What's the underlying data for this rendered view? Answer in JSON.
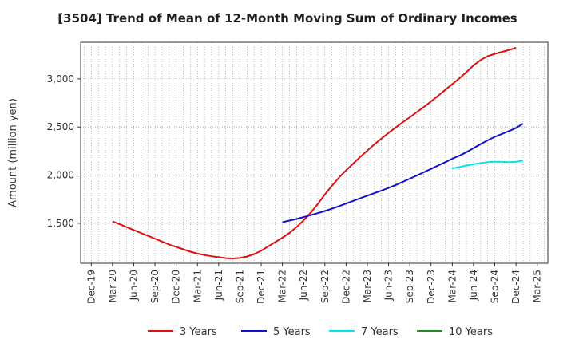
{
  "chart_data": {
    "type": "line",
    "title": "[3504]  Trend of Mean of 12-Month Moving Sum of Ordinary Incomes",
    "ylabel": "Amount (million yen)",
    "xlabel": "",
    "x_ticks": [
      "Dec-19",
      "Mar-20",
      "Jun-20",
      "Sep-20",
      "Dec-20",
      "Mar-21",
      "Jun-21",
      "Sep-21",
      "Dec-21",
      "Mar-22",
      "Jun-22",
      "Sep-22",
      "Dec-22",
      "Mar-23",
      "Jun-23",
      "Sep-23",
      "Dec-23",
      "Mar-24",
      "Jun-24",
      "Sep-24",
      "Dec-24",
      "Mar-25"
    ],
    "y_ticks": [
      1500,
      2000,
      2500,
      3000
    ],
    "y_tick_labels": [
      "1,500",
      "2,000",
      "2,500",
      "3,000"
    ],
    "ylim": [
      1085,
      3380
    ],
    "grid": true,
    "legend_position": "bottom",
    "series": [
      {
        "name": "3 Years",
        "color": "#dd1111",
        "points": [
          [
            "Mar-20",
            1520
          ],
          [
            "Apr-20",
            1490
          ],
          [
            "May-20",
            1460
          ],
          [
            "Jun-20",
            1430
          ],
          [
            "Jul-20",
            1400
          ],
          [
            "Aug-20",
            1370
          ],
          [
            "Sep-20",
            1340
          ],
          [
            "Oct-20",
            1310
          ],
          [
            "Nov-20",
            1280
          ],
          [
            "Dec-20",
            1255
          ],
          [
            "Jan-21",
            1230
          ],
          [
            "Feb-21",
            1205
          ],
          [
            "Mar-21",
            1185
          ],
          [
            "Apr-21",
            1170
          ],
          [
            "May-21",
            1158
          ],
          [
            "Jun-21",
            1148
          ],
          [
            "Jul-21",
            1138
          ],
          [
            "Aug-21",
            1135
          ],
          [
            "Sep-21",
            1140
          ],
          [
            "Oct-21",
            1155
          ],
          [
            "Nov-21",
            1180
          ],
          [
            "Dec-21",
            1215
          ],
          [
            "Jan-22",
            1260
          ],
          [
            "Feb-22",
            1305
          ],
          [
            "Mar-22",
            1350
          ],
          [
            "Apr-22",
            1400
          ],
          [
            "May-22",
            1460
          ],
          [
            "Jun-22",
            1530
          ],
          [
            "Jul-22",
            1610
          ],
          [
            "Aug-22",
            1700
          ],
          [
            "Sep-22",
            1800
          ],
          [
            "Oct-22",
            1890
          ],
          [
            "Nov-22",
            1975
          ],
          [
            "Dec-22",
            2050
          ],
          [
            "Jan-23",
            2120
          ],
          [
            "Feb-23",
            2190
          ],
          [
            "Mar-23",
            2255
          ],
          [
            "Apr-23",
            2320
          ],
          [
            "May-23",
            2380
          ],
          [
            "Jun-23",
            2440
          ],
          [
            "Jul-23",
            2495
          ],
          [
            "Aug-23",
            2550
          ],
          [
            "Sep-23",
            2600
          ],
          [
            "Oct-23",
            2655
          ],
          [
            "Nov-23",
            2710
          ],
          [
            "Dec-23",
            2765
          ],
          [
            "Jan-24",
            2825
          ],
          [
            "Feb-24",
            2885
          ],
          [
            "Mar-24",
            2945
          ],
          [
            "Apr-24",
            3005
          ],
          [
            "May-24",
            3070
          ],
          [
            "Jun-24",
            3140
          ],
          [
            "Jul-24",
            3195
          ],
          [
            "Aug-24",
            3235
          ],
          [
            "Sep-24",
            3260
          ],
          [
            "Oct-24",
            3280
          ],
          [
            "Nov-24",
            3300
          ],
          [
            "Dec-24",
            3322
          ]
        ]
      },
      {
        "name": "5 Years",
        "color": "#1111cc",
        "points": [
          [
            "Mar-22",
            1512
          ],
          [
            "Apr-22",
            1528
          ],
          [
            "May-22",
            1545
          ],
          [
            "Jun-22",
            1565
          ],
          [
            "Jul-22",
            1585
          ],
          [
            "Aug-22",
            1605
          ],
          [
            "Sep-22",
            1628
          ],
          [
            "Oct-22",
            1652
          ],
          [
            "Nov-22",
            1678
          ],
          [
            "Dec-22",
            1705
          ],
          [
            "Jan-23",
            1733
          ],
          [
            "Feb-23",
            1760
          ],
          [
            "Mar-23",
            1787
          ],
          [
            "Apr-23",
            1813
          ],
          [
            "May-23",
            1840
          ],
          [
            "Jun-23",
            1868
          ],
          [
            "Jul-23",
            1898
          ],
          [
            "Aug-23",
            1930
          ],
          [
            "Sep-23",
            1963
          ],
          [
            "Oct-23",
            1996
          ],
          [
            "Nov-23",
            2030
          ],
          [
            "Dec-23",
            2065
          ],
          [
            "Jan-24",
            2100
          ],
          [
            "Feb-24",
            2135
          ],
          [
            "Mar-24",
            2170
          ],
          [
            "Apr-24",
            2203
          ],
          [
            "May-24",
            2238
          ],
          [
            "Jun-24",
            2280
          ],
          [
            "Jul-24",
            2323
          ],
          [
            "Aug-24",
            2362
          ],
          [
            "Sep-24",
            2398
          ],
          [
            "Oct-24",
            2428
          ],
          [
            "Nov-24",
            2458
          ],
          [
            "Dec-24",
            2490
          ],
          [
            "Jan-25",
            2535
          ]
        ]
      },
      {
        "name": "7 Years",
        "color": "#00e5ee",
        "points": [
          [
            "Mar-24",
            2070
          ],
          [
            "Apr-24",
            2085
          ],
          [
            "May-24",
            2100
          ],
          [
            "Jun-24",
            2113
          ],
          [
            "Jul-24",
            2125
          ],
          [
            "Aug-24",
            2135
          ],
          [
            "Sep-24",
            2140
          ],
          [
            "Oct-24",
            2138
          ],
          [
            "Nov-24",
            2135
          ],
          [
            "Dec-24",
            2138
          ],
          [
            "Jan-25",
            2152
          ]
        ]
      },
      {
        "name": "10 Years",
        "color": "#228b22",
        "points": []
      }
    ]
  }
}
